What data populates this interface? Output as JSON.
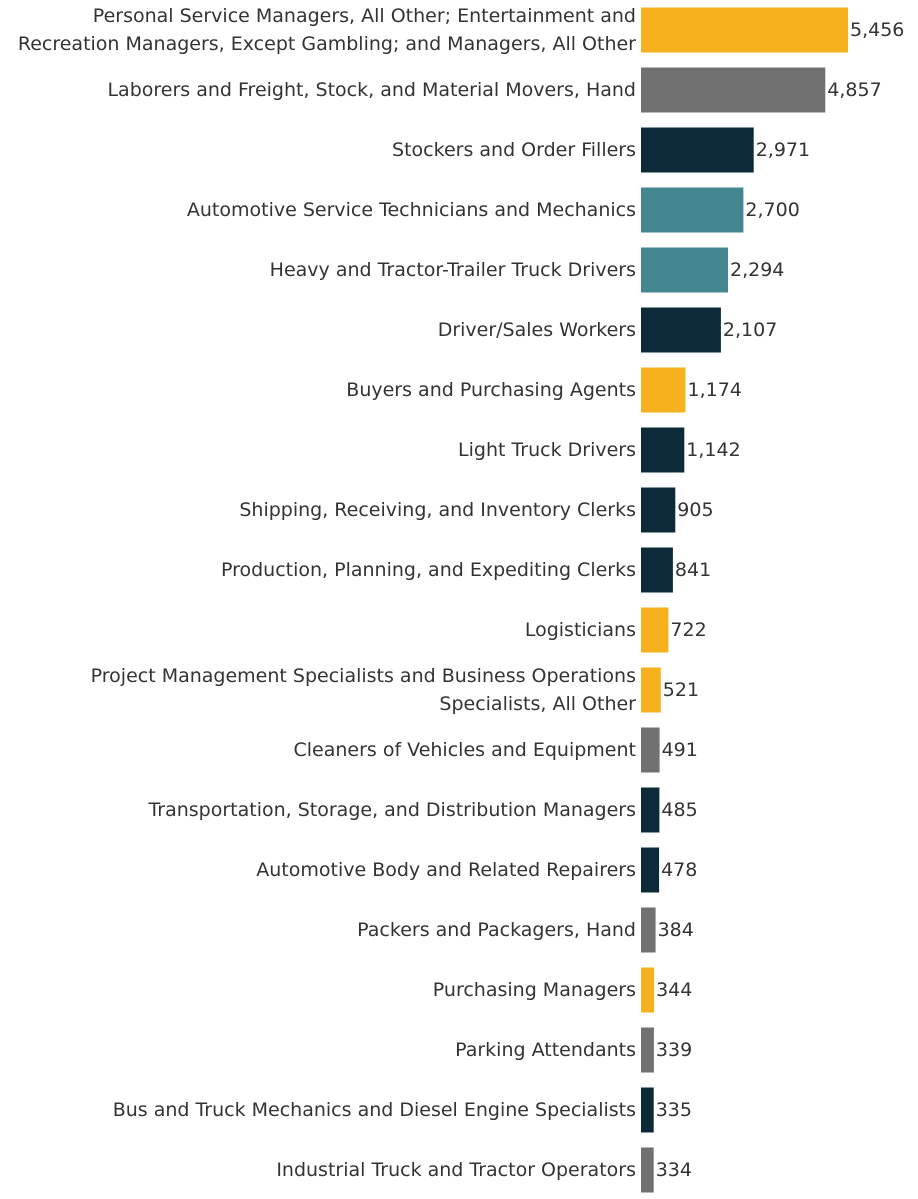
{
  "chart_data": {
    "type": "bar",
    "orientation": "horizontal",
    "title": "",
    "xlabel": "",
    "ylabel": "",
    "grid": false,
    "legend": "none",
    "xlim": [
      0,
      5456
    ],
    "items": [
      {
        "label": [
          "Personal Service Managers, All Other; Entertainment and",
          "Recreation Managers, Except Gambling; and Managers, All Other"
        ],
        "value": 5456,
        "value_label": "5,456",
        "color": "#F5B21E"
      },
      {
        "label": [
          "Laborers and Freight, Stock, and Material Movers, Hand"
        ],
        "value": 4857,
        "value_label": "4,857",
        "color": "#717171"
      },
      {
        "label": [
          "Stockers and Order Fillers"
        ],
        "value": 2971,
        "value_label": "2,971",
        "color": "#0C2A38"
      },
      {
        "label": [
          "Automotive Service Technicians and Mechanics"
        ],
        "value": 2700,
        "value_label": "2,700",
        "color": "#43868F"
      },
      {
        "label": [
          "Heavy and Tractor-Trailer Truck Drivers"
        ],
        "value": 2294,
        "value_label": "2,294",
        "color": "#43868F"
      },
      {
        "label": [
          "Driver/Sales Workers"
        ],
        "value": 2107,
        "value_label": "2,107",
        "color": "#0C2A38"
      },
      {
        "label": [
          "Buyers and Purchasing Agents"
        ],
        "value": 1174,
        "value_label": "1,174",
        "color": "#F5B21E"
      },
      {
        "label": [
          "Light Truck Drivers"
        ],
        "value": 1142,
        "value_label": "1,142",
        "color": "#0C2A38"
      },
      {
        "label": [
          "Shipping, Receiving, and Inventory Clerks"
        ],
        "value": 905,
        "value_label": "905",
        "color": "#0C2A38"
      },
      {
        "label": [
          "Production, Planning, and Expediting Clerks"
        ],
        "value": 841,
        "value_label": "841",
        "color": "#0C2A38"
      },
      {
        "label": [
          "Logisticians"
        ],
        "value": 722,
        "value_label": "722",
        "color": "#F5B21E"
      },
      {
        "label": [
          "Project Management Specialists and Business Operations",
          "Specialists, All Other"
        ],
        "value": 521,
        "value_label": "521",
        "color": "#F5B21E"
      },
      {
        "label": [
          "Cleaners of Vehicles and Equipment"
        ],
        "value": 491,
        "value_label": "491",
        "color": "#717171"
      },
      {
        "label": [
          "Transportation, Storage, and Distribution Managers"
        ],
        "value": 485,
        "value_label": "485",
        "color": "#0C2A38"
      },
      {
        "label": [
          "Automotive Body and Related Repairers"
        ],
        "value": 478,
        "value_label": "478",
        "color": "#0C2A38"
      },
      {
        "label": [
          "Packers and Packagers, Hand"
        ],
        "value": 384,
        "value_label": "384",
        "color": "#717171"
      },
      {
        "label": [
          "Purchasing Managers"
        ],
        "value": 344,
        "value_label": "344",
        "color": "#F5B21E"
      },
      {
        "label": [
          "Parking Attendants"
        ],
        "value": 339,
        "value_label": "339",
        "color": "#717171"
      },
      {
        "label": [
          "Bus and Truck Mechanics and Diesel Engine Specialists"
        ],
        "value": 335,
        "value_label": "335",
        "color": "#0C2A38"
      },
      {
        "label": [
          "Industrial Truck and Tractor Operators"
        ],
        "value": 334,
        "value_label": "334",
        "color": "#717171"
      }
    ]
  }
}
